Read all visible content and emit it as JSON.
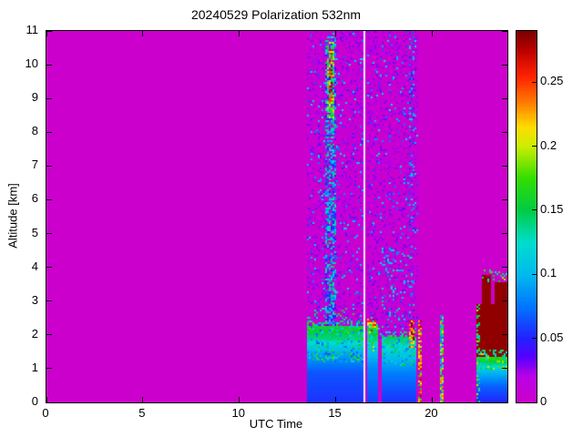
{
  "chart_data": {
    "type": "heatmap",
    "title": "20240529 Polarization 532nm",
    "xlabel": "UTC Time",
    "ylabel": "Altitude [km]",
    "xlim": [
      0,
      23.9
    ],
    "ylim": [
      0,
      11
    ],
    "clim": [
      0,
      0.29
    ],
    "xticks": [
      0,
      5,
      10,
      15,
      20
    ],
    "yticks": [
      0,
      1,
      2,
      3,
      4,
      5,
      6,
      7,
      8,
      9,
      10,
      11
    ],
    "colorbar_ticks": [
      0,
      0.05,
      0.1,
      0.15,
      0.2,
      0.25
    ],
    "background_value": 0,
    "background_color": "#CC00CC",
    "gap_color": "#F7EDF7",
    "colormap": [
      [
        0.0,
        "#CC00CC"
      ],
      [
        0.02,
        "#BB00E6"
      ],
      [
        0.035,
        "#5500FF"
      ],
      [
        0.05,
        "#2222FF"
      ],
      [
        0.075,
        "#0077FF"
      ],
      [
        0.1,
        "#00BBEE"
      ],
      [
        0.125,
        "#00DDCC"
      ],
      [
        0.15,
        "#00CC44"
      ],
      [
        0.175,
        "#33DD00"
      ],
      [
        0.2,
        "#CCEE00"
      ],
      [
        0.215,
        "#FFDD00"
      ],
      [
        0.235,
        "#FF7700"
      ],
      [
        0.255,
        "#FF2200"
      ],
      [
        0.275,
        "#BB0000"
      ],
      [
        0.29,
        "#7A0000"
      ]
    ],
    "regions": [
      {
        "name": "noise-left",
        "type": "speckle",
        "t": [
          13.55,
          16.42
        ],
        "a": [
          1.85,
          11
        ],
        "density": 0.55,
        "vmin": 0,
        "vmax": 0.03
      },
      {
        "name": "noise-left-dots",
        "type": "speckle",
        "t": [
          13.55,
          16.42
        ],
        "a": [
          1.85,
          11
        ],
        "density": 0.05,
        "vmin": 0.05,
        "vmax": 0.13
      },
      {
        "name": "noise-right",
        "type": "speckle",
        "t": [
          16.58,
          19.3
        ],
        "a": [
          1.85,
          11
        ],
        "density": 0.55,
        "vmin": 0,
        "vmax": 0.03
      },
      {
        "name": "noise-right-dots",
        "type": "speckle",
        "t": [
          16.58,
          19.3
        ],
        "a": [
          1.85,
          11
        ],
        "density": 0.05,
        "vmin": 0.05,
        "vmax": 0.13
      },
      {
        "name": "updraft-plume",
        "type": "speckle",
        "t": [
          14.5,
          15.05
        ],
        "a": [
          2.2,
          10.9
        ],
        "density": 0.6,
        "vmin": 0.03,
        "vmax": 0.15
      },
      {
        "name": "plume-top-green",
        "type": "speckle",
        "t": [
          14.55,
          14.92
        ],
        "a": [
          8.4,
          10.7
        ],
        "density": 0.75,
        "vmin": 0.1,
        "vmax": 0.22
      },
      {
        "name": "plume-top-red",
        "type": "speckle",
        "t": [
          14.6,
          14.82
        ],
        "a": [
          8.9,
          10.45
        ],
        "density": 0.6,
        "vmin": 0.22,
        "vmax": 0.29
      },
      {
        "name": "boundary-layer-1",
        "type": "gradient",
        "t": [
          13.55,
          16.42
        ],
        "a": [
          0,
          2.25
        ],
        "stops": [
          [
            0,
            0.055
          ],
          [
            0.9,
            0.065
          ],
          [
            1.5,
            0.095
          ],
          [
            1.9,
            0.14
          ],
          [
            2.25,
            0.16
          ]
        ]
      },
      {
        "name": "bl1-speckle",
        "type": "speckle",
        "t": [
          13.55,
          16.42
        ],
        "a": [
          1.2,
          2.45
        ],
        "density": 0.35,
        "vmin": 0.06,
        "vmax": 0.18
      },
      {
        "name": "bl1-top-dots",
        "type": "speckle",
        "t": [
          13.55,
          16.42
        ],
        "a": [
          2.25,
          2.8
        ],
        "density": 0.12,
        "vmin": 0.08,
        "vmax": 0.17
      },
      {
        "name": "data-gap",
        "type": "gap",
        "t": [
          16.44,
          16.56
        ],
        "a": [
          0,
          11
        ]
      },
      {
        "name": "boundary-layer-2",
        "type": "gradient",
        "t": [
          16.6,
          17.15
        ],
        "a": [
          0,
          2.3
        ],
        "stops": [
          [
            0,
            0.06
          ],
          [
            1,
            0.08
          ],
          [
            1.6,
            0.11
          ],
          [
            2,
            0.15
          ],
          [
            2.3,
            0.18
          ]
        ]
      },
      {
        "name": "bl2-speckle",
        "type": "speckle",
        "t": [
          16.6,
          17.15
        ],
        "a": [
          1.5,
          2.4
        ],
        "density": 0.4,
        "vmin": 0.08,
        "vmax": 0.2
      },
      {
        "name": "bl2-red-cap",
        "type": "speckle",
        "t": [
          16.62,
          17.12
        ],
        "a": [
          2.05,
          2.5
        ],
        "density": 0.35,
        "vmin": 0.2,
        "vmax": 0.28
      },
      {
        "name": "boundary-layer-3",
        "type": "gradient",
        "t": [
          17.35,
          19.22
        ],
        "a": [
          0,
          1.95
        ],
        "stops": [
          [
            0,
            0.055
          ],
          [
            0.8,
            0.075
          ],
          [
            1.3,
            0.1
          ],
          [
            1.7,
            0.13
          ],
          [
            1.95,
            0.15
          ]
        ]
      },
      {
        "name": "bl3-speckle",
        "type": "speckle",
        "t": [
          17.35,
          19.22
        ],
        "a": [
          1.1,
          2.1
        ],
        "density": 0.35,
        "vmin": 0.07,
        "vmax": 0.17
      },
      {
        "name": "bl3-trail-dots",
        "type": "speckle",
        "t": [
          17.4,
          19.1
        ],
        "a": [
          2,
          4.6
        ],
        "density": 0.09,
        "vmin": 0.05,
        "vmax": 0.14
      },
      {
        "name": "red-spot",
        "type": "speckle",
        "t": [
          18.8,
          19.05
        ],
        "a": [
          1.6,
          2.4
        ],
        "density": 0.7,
        "vmin": 0.2,
        "vmax": 0.29
      },
      {
        "name": "high-dotted-column",
        "type": "speckle",
        "t": [
          18.8,
          19.12
        ],
        "a": [
          4.6,
          11
        ],
        "density": 0.2,
        "vmin": 0.04,
        "vmax": 0.12
      },
      {
        "name": "thin-streak-1930",
        "type": "speckle",
        "t": [
          19.3,
          19.42
        ],
        "a": [
          0,
          2.4
        ],
        "density": 0.7,
        "vmin": 0.15,
        "vmax": 0.28
      },
      {
        "name": "thin-streak-2045",
        "type": "speckle",
        "t": [
          20.42,
          20.56
        ],
        "a": [
          0,
          2.6
        ],
        "density": 0.85,
        "vmin": 0.07,
        "vmax": 0.24
      },
      {
        "name": "smoke-blob-base",
        "type": "fill",
        "t": [
          22.32,
          23.88
        ],
        "a": [
          0,
          2.9
        ],
        "v": 0.285
      },
      {
        "name": "smoke-blob-top-1",
        "type": "fill",
        "t": [
          22.55,
          23.05
        ],
        "a": [
          2.9,
          3.8
        ],
        "v": 0.285
      },
      {
        "name": "smoke-blob-top-2",
        "type": "fill",
        "t": [
          23.25,
          23.88
        ],
        "a": [
          2.9,
          3.55
        ],
        "v": 0.285
      },
      {
        "name": "blob-under-gradient",
        "type": "gradient",
        "t": [
          22.32,
          23.88
        ],
        "a": [
          0,
          1.35
        ],
        "stops": [
          [
            0,
            0.05
          ],
          [
            0.5,
            0.07
          ],
          [
            0.9,
            0.1
          ],
          [
            1.15,
            0.14
          ],
          [
            1.35,
            0.18
          ]
        ]
      },
      {
        "name": "blob-interface-speckle",
        "type": "speckle",
        "t": [
          22.32,
          23.88
        ],
        "a": [
          0.95,
          1.55
        ],
        "density": 0.4,
        "vmin": 0.1,
        "vmax": 0.2
      },
      {
        "name": "blob-left-fringe",
        "type": "speckle",
        "t": [
          22.32,
          22.52
        ],
        "a": [
          0,
          2.9
        ],
        "density": 0.45,
        "vmin": 0.1,
        "vmax": 0.2
      },
      {
        "name": "blob-top-fringe",
        "type": "speckle",
        "t": [
          22.5,
          23.88
        ],
        "a": [
          3.55,
          3.95
        ],
        "density": 0.15,
        "vmin": 0.12,
        "vmax": 0.2
      }
    ]
  }
}
